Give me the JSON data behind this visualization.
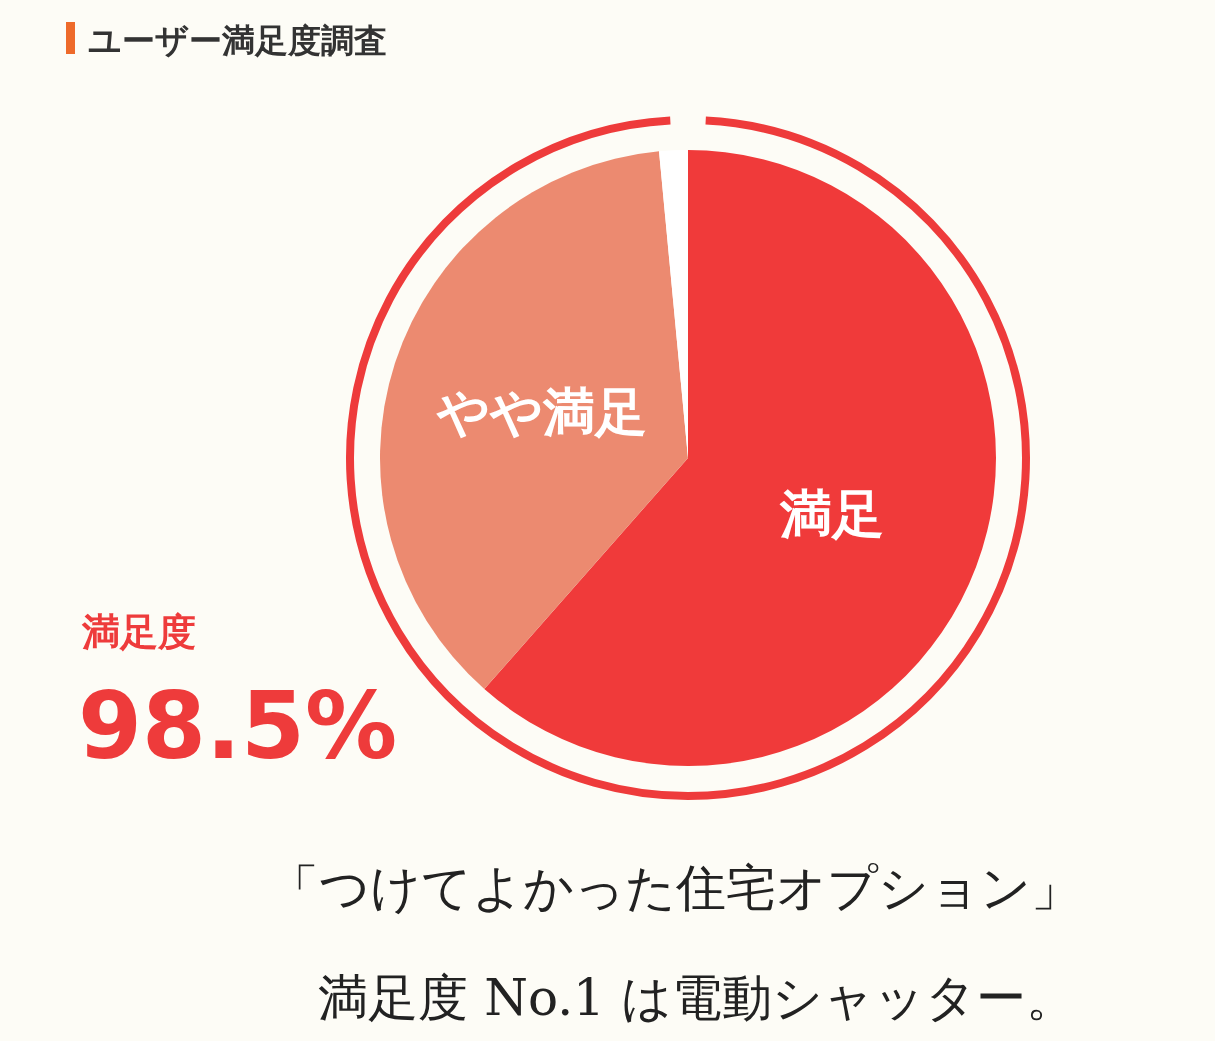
{
  "chart_data": {
    "type": "pie",
    "title": "ユーザー満足度調査",
    "categories": [
      "満足",
      "やや満足",
      null
    ],
    "values": [
      61.5,
      37,
      1.5
    ],
    "colors": [
      "#f03a3a",
      "#ec8a70",
      "#ffffff"
    ],
    "annotations": [
      "満足度",
      "98.5%",
      "「つけてよかった住宅オプション」",
      "満足度 No.1 は電動シャッター。"
    ]
  }
}
